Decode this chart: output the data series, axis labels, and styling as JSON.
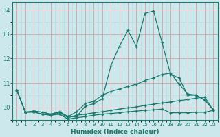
{
  "xlabel": "Humidex (Indice chaleur)",
  "background_color": "#cce8ec",
  "grid_color_major": "#d4a0a0",
  "grid_color_minor": "#b8d8dc",
  "line_color": "#1a7a6e",
  "xlim": [
    -0.5,
    23.5
  ],
  "ylim": [
    9.5,
    14.3
  ],
  "yticks": [
    10,
    11,
    12,
    13,
    14
  ],
  "xticks": [
    0,
    1,
    2,
    3,
    4,
    5,
    6,
    7,
    8,
    9,
    10,
    11,
    12,
    13,
    14,
    15,
    16,
    17,
    18,
    19,
    20,
    21,
    22,
    23
  ],
  "lines": [
    {
      "x": [
        0,
        1,
        2,
        3,
        4,
        5,
        6,
        7,
        8,
        9,
        10,
        11,
        12,
        13,
        14,
        15,
        16,
        17,
        18,
        19,
        20,
        21,
        22,
        23
      ],
      "y": [
        10.7,
        9.8,
        9.85,
        9.8,
        9.72,
        9.82,
        9.62,
        9.62,
        10.05,
        10.15,
        10.35,
        11.7,
        12.5,
        13.15,
        12.5,
        13.85,
        13.95,
        12.65,
        11.35,
        11.2,
        10.5,
        10.5,
        10.3,
        9.9
      ]
    },
    {
      "x": [
        0,
        1,
        2,
        3,
        4,
        5,
        6,
        7,
        8,
        9,
        10,
        11,
        12,
        13,
        14,
        15,
        16,
        17,
        18,
        19,
        20,
        21,
        22,
        23
      ],
      "y": [
        10.7,
        9.8,
        9.85,
        9.8,
        9.72,
        9.82,
        9.62,
        9.82,
        10.15,
        10.25,
        10.5,
        10.65,
        10.75,
        10.85,
        10.95,
        11.1,
        11.2,
        11.35,
        11.4,
        10.95,
        10.55,
        10.5,
        10.3,
        9.9
      ]
    },
    {
      "x": [
        0,
        1,
        2,
        3,
        4,
        5,
        6,
        7,
        8,
        9,
        10,
        11,
        12,
        13,
        14,
        15,
        16,
        17,
        18,
        19,
        20,
        21,
        22,
        23
      ],
      "y": [
        10.7,
        9.8,
        9.82,
        9.72,
        9.68,
        9.78,
        9.58,
        9.68,
        9.72,
        9.78,
        9.82,
        9.88,
        9.93,
        9.98,
        10.02,
        10.08,
        10.13,
        10.18,
        10.22,
        10.28,
        10.32,
        10.38,
        10.42,
        9.88
      ]
    },
    {
      "x": [
        0,
        1,
        2,
        3,
        4,
        5,
        6,
        7,
        8,
        9,
        10,
        11,
        12,
        13,
        14,
        15,
        16,
        17,
        18,
        19,
        20,
        21,
        22,
        23
      ],
      "y": [
        10.7,
        9.8,
        9.8,
        9.72,
        9.68,
        9.72,
        9.52,
        9.58,
        9.62,
        9.68,
        9.72,
        9.75,
        9.78,
        9.82,
        9.85,
        9.88,
        9.9,
        9.93,
        9.78,
        9.78,
        9.78,
        9.8,
        9.8,
        9.88
      ]
    }
  ]
}
